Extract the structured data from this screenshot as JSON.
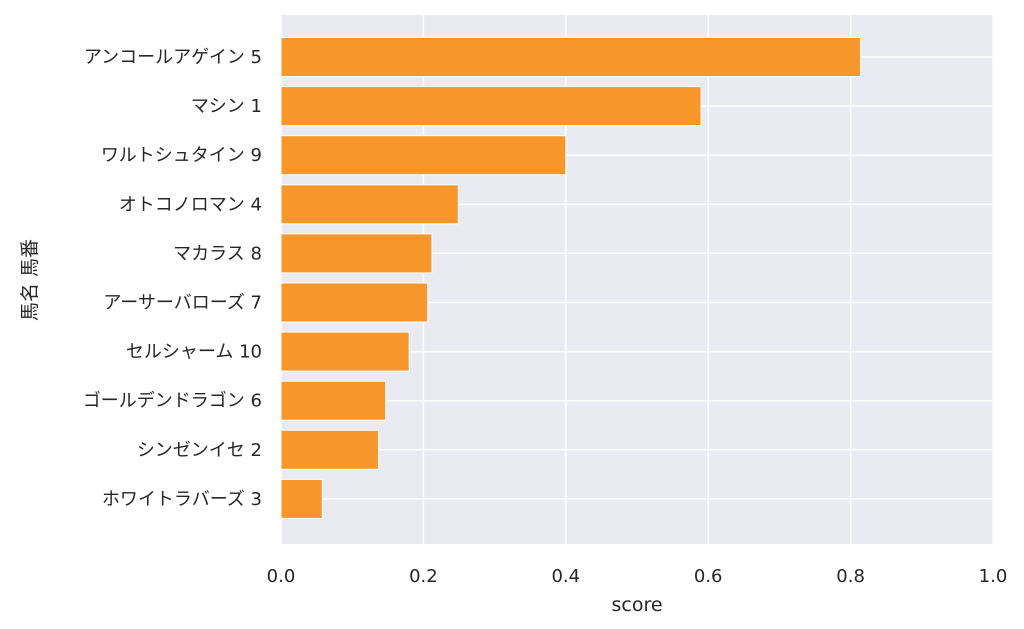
{
  "chart_data": {
    "type": "bar",
    "orientation": "horizontal",
    "categories": [
      "アンコールアゲイン 5",
      "マシン 1",
      "ワルトシュタイン 9",
      "オトコノロマン 4",
      "マカラス 8",
      "アーサーバローズ 7",
      "セルシャーム 10",
      "ゴールデンドラゴン 6",
      "シンゼンイセ 2",
      "ホワイトラバーズ 3"
    ],
    "values": [
      0.814,
      0.59,
      0.4,
      0.249,
      0.212,
      0.206,
      0.18,
      0.147,
      0.137,
      0.058
    ],
    "title": "",
    "xlabel": "score",
    "ylabel": "馬名 馬番",
    "xlim": [
      0,
      1.0
    ],
    "xticks": [
      "0.0",
      "0.2",
      "0.4",
      "0.6",
      "0.8",
      "1.0"
    ],
    "grid": true,
    "colors": {
      "bar": "#f7962b",
      "plot_background": "#eaeaf2",
      "grid": "#ffffff"
    }
  }
}
